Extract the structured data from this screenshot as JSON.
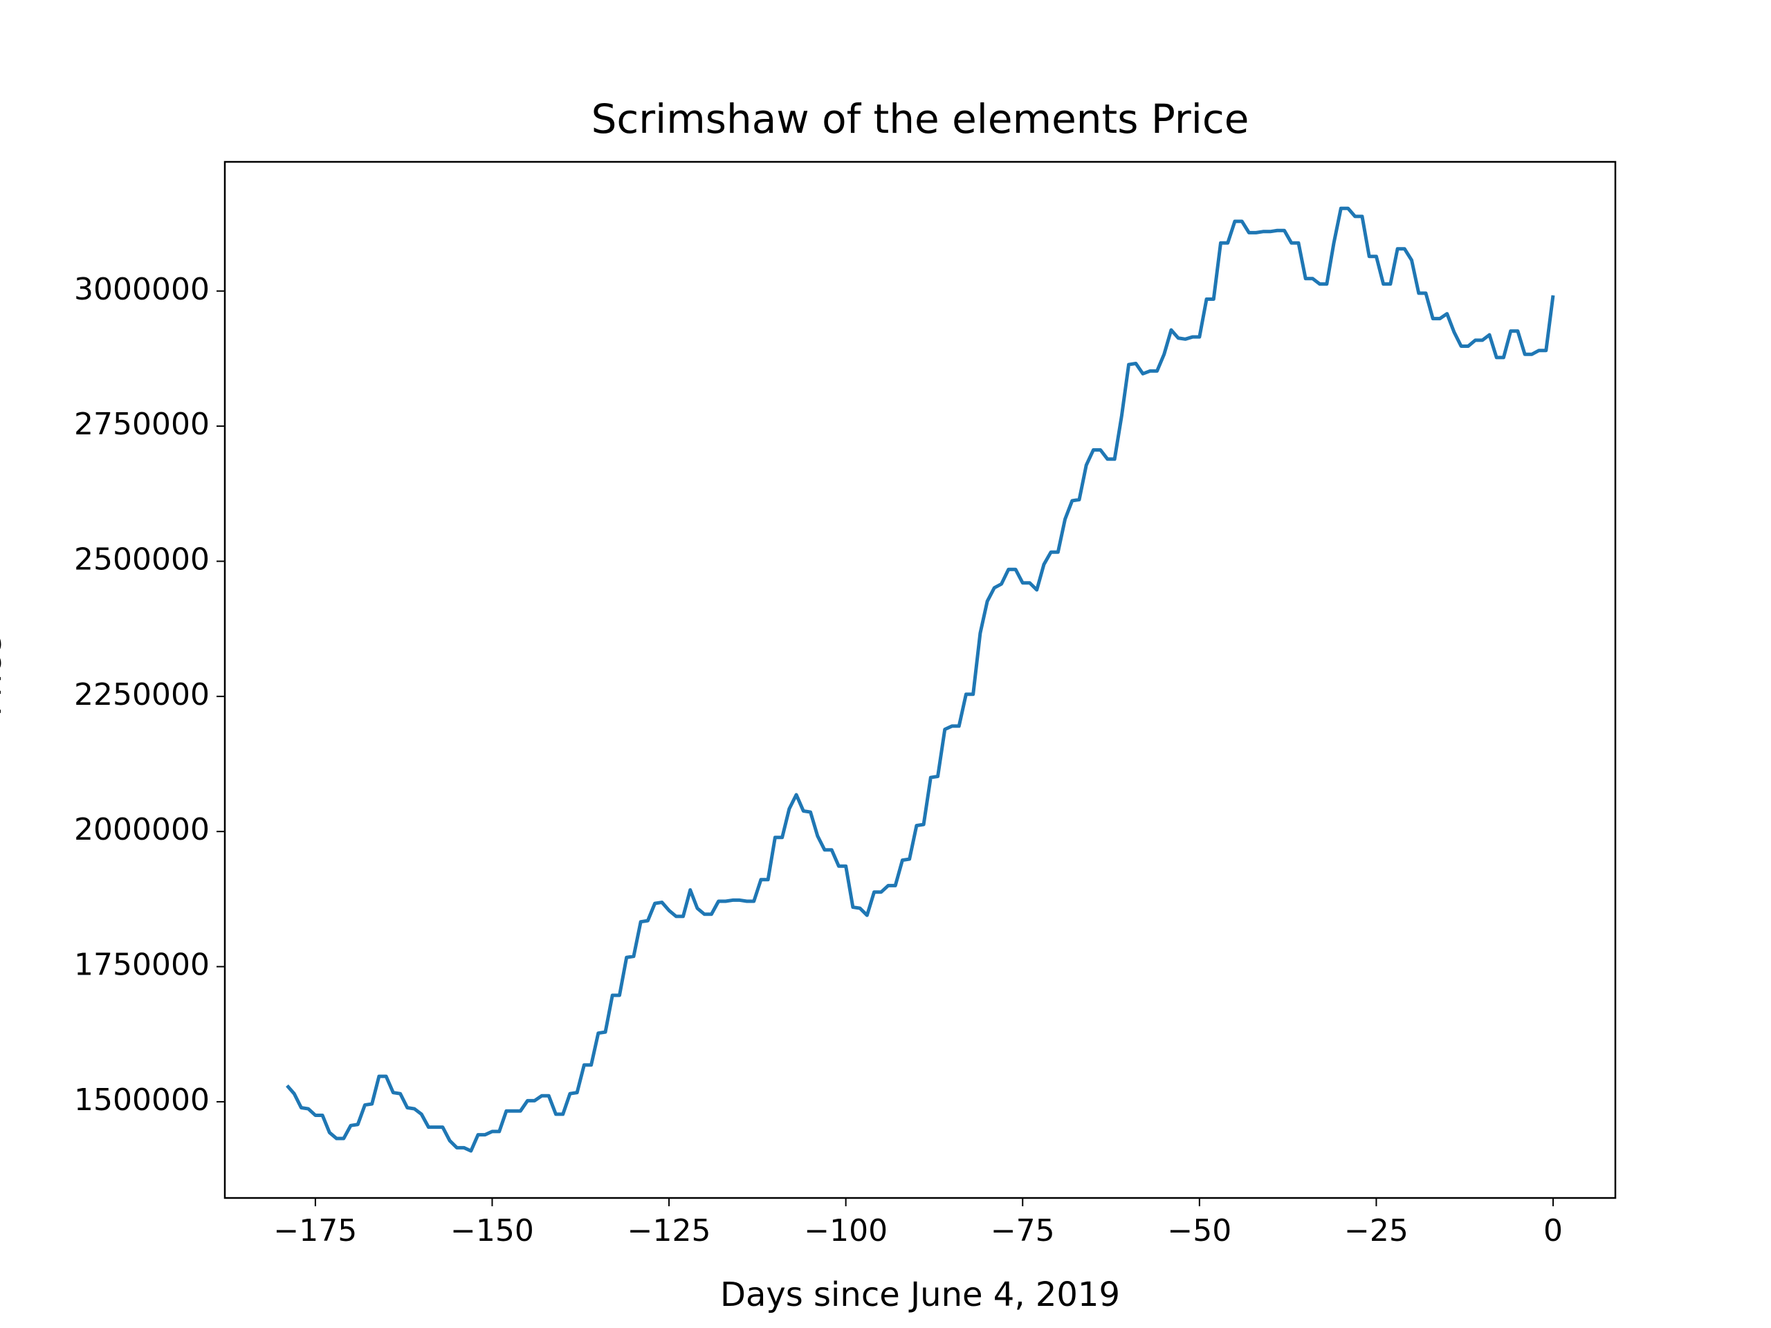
{
  "chart_data": {
    "type": "line",
    "title": "Scrimshaw of the elements Price",
    "x_label": "Days since June 4, 2019",
    "y_label": "Price",
    "x": [
      -179,
      -178,
      -177,
      -176,
      -175,
      -174,
      -173,
      -172,
      -171,
      -170,
      -169,
      -168,
      -167,
      -166,
      -165,
      -164,
      -163,
      -162,
      -161,
      -160,
      -159,
      -158,
      -157,
      -156,
      -155,
      -154,
      -153,
      -152,
      -151,
      -150,
      -149,
      -148,
      -147,
      -146,
      -145,
      -144,
      -143,
      -142,
      -141,
      -140,
      -139,
      -138,
      -137,
      -136,
      -135,
      -134,
      -133,
      -132,
      -131,
      -130,
      -129,
      -128,
      -127,
      -126,
      -125,
      -124,
      -123,
      -122,
      -121,
      -120,
      -119,
      -118,
      -117,
      -116,
      -115,
      -114,
      -113,
      -112,
      -111,
      -110,
      -109,
      -108,
      -107,
      -106,
      -105,
      -104,
      -103,
      -102,
      -101,
      -100,
      -99,
      -98,
      -97,
      -96,
      -95,
      -94,
      -93,
      -92,
      -91,
      -90,
      -89,
      -88,
      -87,
      -86,
      -85,
      -84,
      -83,
      -82,
      -81,
      -80,
      -79,
      -78,
      -77,
      -76,
      -75,
      -74,
      -73,
      -72,
      -71,
      -70,
      -69,
      -68,
      -67,
      -66,
      -65,
      -64,
      -63,
      -62,
      -61,
      -60,
      -59,
      -58,
      -57,
      -56,
      -55,
      -54,
      -53,
      -52,
      -51,
      -50,
      -49,
      -48,
      -47,
      -46,
      -45,
      -44,
      -43,
      -42,
      -41,
      -40,
      -39,
      -38,
      -37,
      -36,
      -35,
      -34,
      -33,
      -32,
      -31,
      -30,
      -29,
      -28,
      -27,
      -26,
      -25,
      -24,
      -23,
      -22,
      -21,
      -20,
      -19,
      -18,
      -17,
      -16,
      -15,
      -14,
      -13,
      -12,
      -11,
      -10,
      -9,
      -8,
      -7,
      -6,
      -5,
      -4,
      -3,
      -2,
      -1,
      0
    ],
    "series": [
      {
        "name": "Price",
        "color": "#1f77b4",
        "values": [
          1530000,
          1515000,
          1489000,
          1487000,
          1475000,
          1475000,
          1443000,
          1432000,
          1432000,
          1456000,
          1458000,
          1494000,
          1496000,
          1547000,
          1547000,
          1517000,
          1515000,
          1489000,
          1487000,
          1477000,
          1453000,
          1453000,
          1453000,
          1428000,
          1415000,
          1415000,
          1409000,
          1439000,
          1439000,
          1445000,
          1445000,
          1483000,
          1483000,
          1483000,
          1502000,
          1502000,
          1511000,
          1511000,
          1477000,
          1477000,
          1515000,
          1517000,
          1568000,
          1568000,
          1627000,
          1629000,
          1697000,
          1697000,
          1767000,
          1769000,
          1833000,
          1835000,
          1867000,
          1869000,
          1854000,
          1843000,
          1843000,
          1892000,
          1858000,
          1847000,
          1847000,
          1871000,
          1871000,
          1873000,
          1873000,
          1871000,
          1871000,
          1911000,
          1911000,
          1989000,
          1989000,
          2042000,
          2068000,
          2038000,
          2036000,
          1992000,
          1966000,
          1966000,
          1936000,
          1936000,
          1860000,
          1858000,
          1845000,
          1888000,
          1888000,
          1900000,
          1900000,
          1947000,
          1949000,
          2011000,
          2013000,
          2100000,
          2102000,
          2189000,
          2195000,
          2195000,
          2254000,
          2254000,
          2367000,
          2426000,
          2451000,
          2458000,
          2485000,
          2485000,
          2460000,
          2460000,
          2447000,
          2494000,
          2517000,
          2517000,
          2578000,
          2612000,
          2614000,
          2678000,
          2706000,
          2706000,
          2689000,
          2689000,
          2769000,
          2864000,
          2866000,
          2847000,
          2852000,
          2852000,
          2883000,
          2928000,
          2913000,
          2911000,
          2915000,
          2915000,
          2985000,
          2985000,
          3089000,
          3089000,
          3129000,
          3129000,
          3108000,
          3108000,
          3110000,
          3110000,
          3112000,
          3112000,
          3089000,
          3089000,
          3023000,
          3023000,
          3013000,
          3013000,
          3089000,
          3153000,
          3153000,
          3138000,
          3138000,
          3064000,
          3064000,
          3013000,
          3013000,
          3078000,
          3078000,
          3057000,
          2996000,
          2996000,
          2949000,
          2949000,
          2958000,
          2924000,
          2898000,
          2898000,
          2909000,
          2909000,
          2919000,
          2877000,
          2877000,
          2926000,
          2926000,
          2883000,
          2883000,
          2890000,
          2890000,
          2992000
        ]
      }
    ],
    "xlim": [
      -187.8,
      8.8
    ],
    "ylim": [
      1322000,
      3239000
    ],
    "xticks": [
      {
        "value": -175,
        "label": "−175"
      },
      {
        "value": -150,
        "label": "−150"
      },
      {
        "value": -125,
        "label": "−125"
      },
      {
        "value": -100,
        "label": "−100"
      },
      {
        "value": -75,
        "label": "−75"
      },
      {
        "value": -50,
        "label": "−50"
      },
      {
        "value": -25,
        "label": "−25"
      },
      0
    ],
    "yticks": [
      1500000,
      1750000,
      2000000,
      2250000,
      2500000,
      2750000,
      3000000
    ],
    "grid": false
  }
}
